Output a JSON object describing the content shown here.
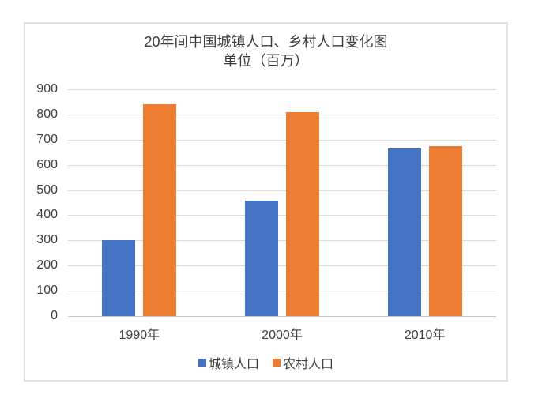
{
  "chart": {
    "title": "20年间中国城镇人口、乡村人口变化图",
    "subtitle": "单位（百万）"
  },
  "chart_data": {
    "type": "bar",
    "title": "20年间中国城镇人口、乡村人口变化图",
    "subtitle": "单位（百万）",
    "categories": [
      "1990年",
      "2000年",
      "2010年"
    ],
    "series": [
      {
        "name": "城镇人口",
        "color": "#4472c4",
        "values": [
          302,
          459,
          666
        ]
      },
      {
        "name": "农村人口",
        "color": "#ed7d31",
        "values": [
          841,
          808,
          674
        ]
      }
    ],
    "xlabel": "",
    "ylabel": "",
    "ylim": [
      0,
      900
    ],
    "ytick_step": 100,
    "grid": true,
    "legend_position": "bottom",
    "styles": {
      "gridline_color": "#d9d9d9",
      "axis_line_color": "#c6c6c6",
      "text_color": "#3f3f3f",
      "frame_border_color": "#e2e2e2",
      "background": "#ffffff"
    }
  }
}
